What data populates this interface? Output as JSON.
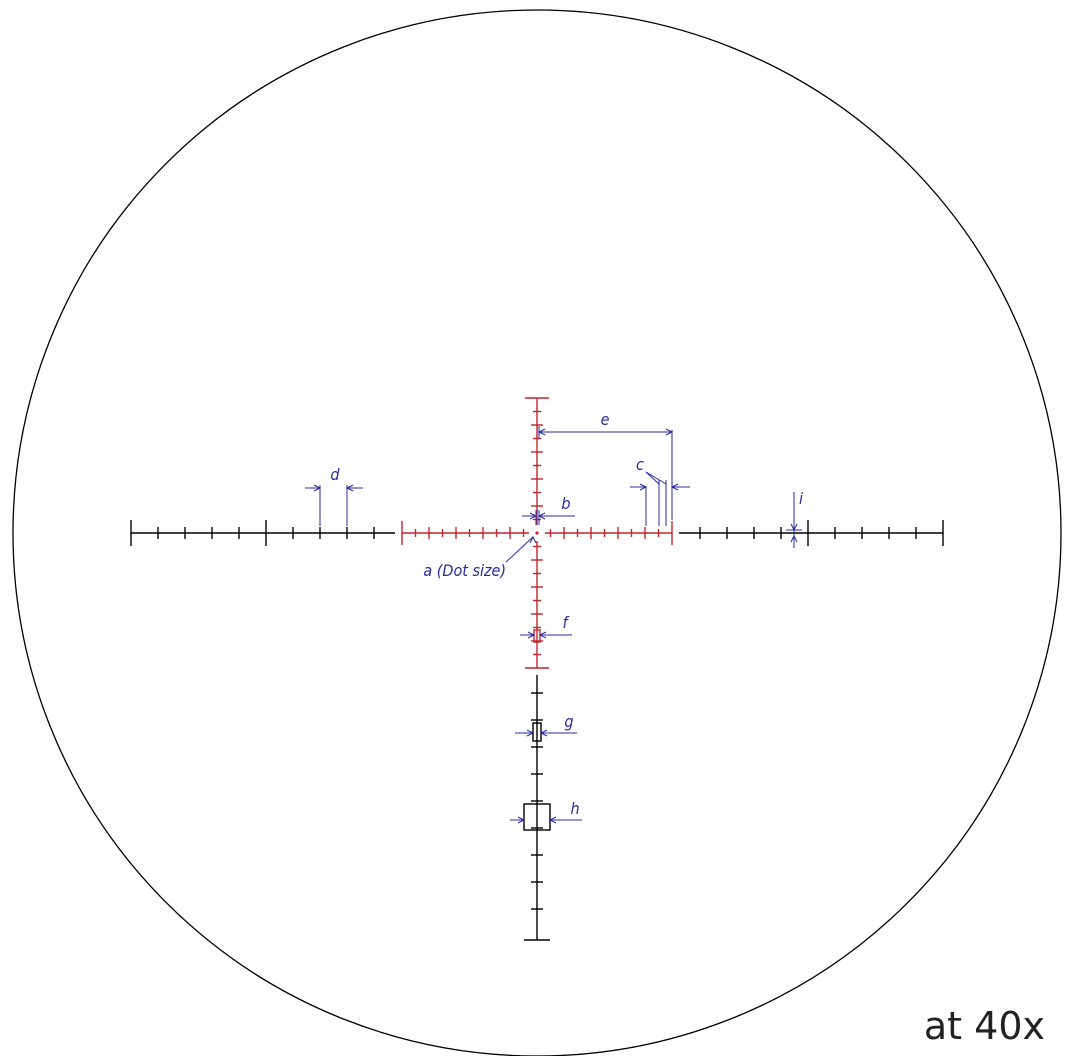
{
  "colors": {
    "outline": "#000000",
    "illuminated": "#c0262c",
    "dimension": "#2a2aa0"
  },
  "labels": {
    "a": "a (Dot size)",
    "b": "b",
    "c": "c",
    "d": "d",
    "e": "e",
    "f": "f",
    "g": "g",
    "h": "h",
    "i": "i"
  },
  "magnification": "at 40x"
}
